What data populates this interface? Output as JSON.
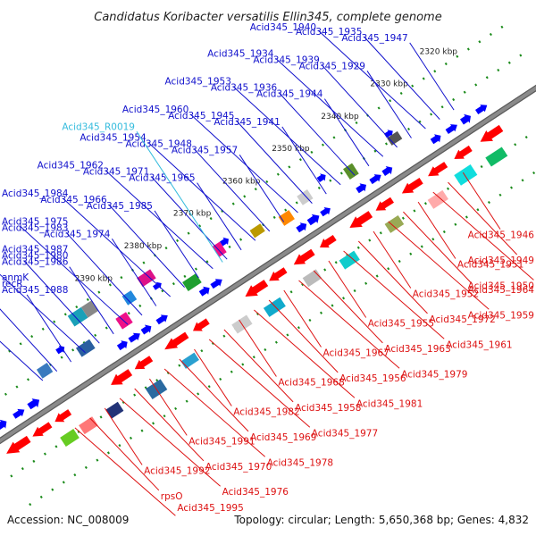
{
  "title": "Candidatus Koribacter versatilis Ellin345, complete genome",
  "footer": {
    "accession": "Accession: NC_008009",
    "summary": "Topology: circular; Length: 5,650,368 bp; Genes: 4,832"
  },
  "colors": {
    "forward_label": "#1010cc",
    "rna_label": "#33bbdd",
    "reverse_label": "#dd1111",
    "backbone": "#8a8a8a",
    "forward_arrow": "#0000ff",
    "reverse_arrow": "#ff0000",
    "tick": "#1a8a1a"
  },
  "kbp_ticks": [
    "2320 kbp",
    "2330 kbp",
    "2340 kbp",
    "2350 kbp",
    "2360 kbp",
    "2370 kbp",
    "2380 kbp",
    "2390 kbp"
  ],
  "forward_labels": [
    "Acid345_1947",
    "Acid345_1935",
    "Acid345_1940",
    "Acid345_1929",
    "Acid345_1939",
    "Acid345_1934",
    "Acid345_1944",
    "Acid345_1936",
    "Acid345_1953",
    "Acid345_1941",
    "Acid345_1945",
    "Acid345_1960",
    "Acid345_1957",
    "Acid345_1948",
    "Acid345_1954",
    "Acid345_1965",
    "Acid345_1971",
    "Acid345_1962",
    "Acid345_1985",
    "Acid345_1966",
    "Acid345_1984",
    "Acid345_1974",
    "Acid345_1983",
    "Acid345_1975",
    "Acid345_1986",
    "Acid345_1980",
    "Acid345_1987",
    "Acid345_1988",
    "recR",
    "anmK"
  ],
  "rna_labels": [
    "Acid345_R0019"
  ],
  "reverse_labels": [
    "Acid345_1946",
    "Acid345_1949",
    "Acid345_1950",
    "Acid345_1951",
    "Acid345_1964",
    "Acid345_1959",
    "Acid345_1952",
    "Acid345_1972",
    "Acid345_1961",
    "Acid345_1955",
    "Acid345_1963",
    "Acid345_1979",
    "Acid345_1967",
    "Acid345_1956",
    "Acid345_1981",
    "Acid345_1968",
    "Acid345_1958",
    "Acid345_1977",
    "Acid345_1982",
    "Acid345_1969",
    "Acid345_1978",
    "Acid345_1991",
    "Acid345_1970",
    "Acid345_1976",
    "Acid345_1992",
    "rpsO",
    "Acid345_1995"
  ]
}
